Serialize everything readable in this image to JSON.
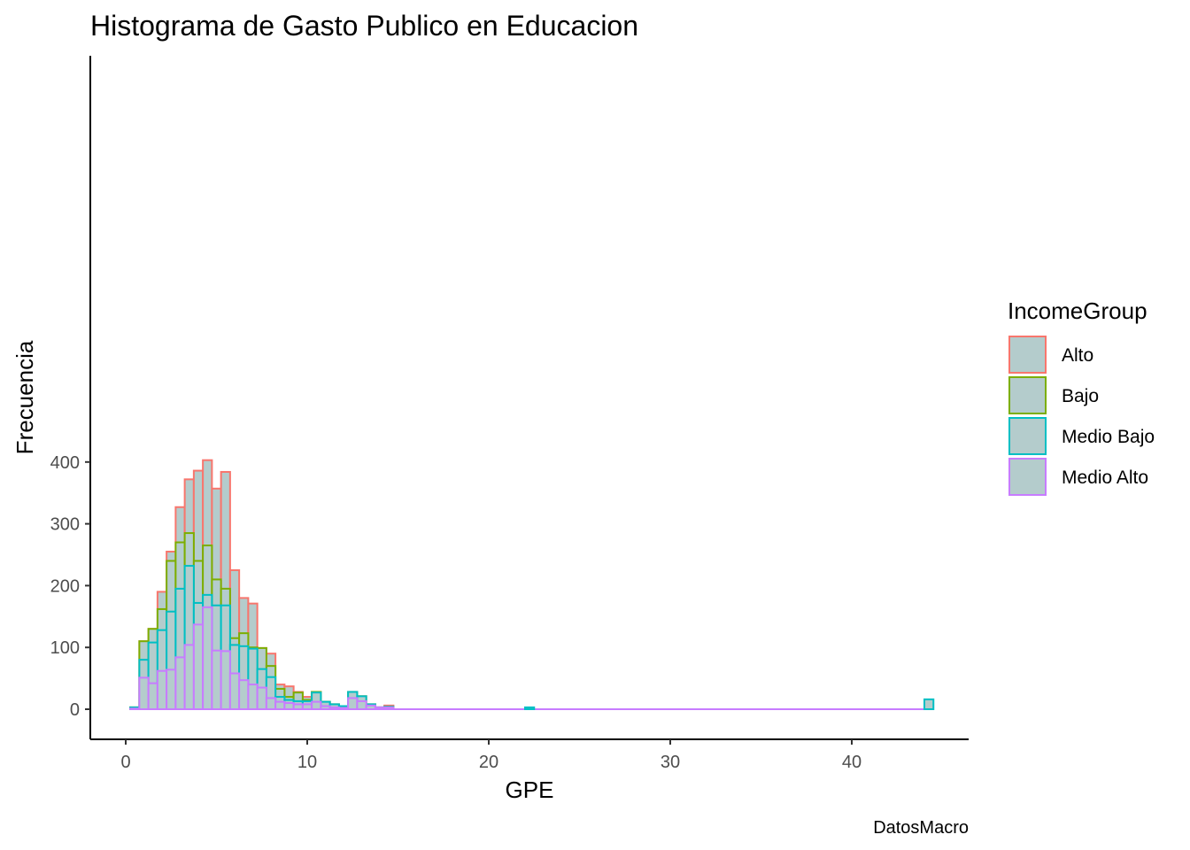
{
  "chart_data": {
    "type": "bar",
    "title": "Histograma de Gasto Publico en Educacion",
    "xlabel": "GPE",
    "ylabel": "Frecuencia",
    "caption": "DatosMacro",
    "xlim": [
      0,
      45
    ],
    "ylim": [
      0,
      420
    ],
    "x_ticks": [
      "0",
      "10",
      "20",
      "30",
      "40"
    ],
    "y_ticks": [
      "0",
      "100",
      "200",
      "300",
      "400"
    ],
    "grid": false,
    "stacked": true,
    "fill_color": "#b4cccc",
    "bin_width": 0.5,
    "bin_start": 0.25,
    "legend": {
      "title": "IncomeGroup",
      "position": "right",
      "entries": [
        {
          "label": "Alto",
          "color": "#f8766d"
        },
        {
          "label": "Bajo",
          "color": "#7cae00"
        },
        {
          "label": "Medio Bajo",
          "color": "#00bfc4"
        },
        {
          "label": "Medio Alto",
          "color": "#c77cff"
        }
      ]
    },
    "cumulative_tops": {
      "Alto": [
        3,
        110,
        130,
        190,
        255,
        327,
        372,
        386,
        403,
        357,
        384,
        225,
        180,
        171,
        99,
        90,
        40,
        37,
        28,
        20,
        28,
        12,
        8,
        5,
        28,
        21,
        8,
        3,
        6
      ],
      "Bajo": [
        3,
        110,
        130,
        162,
        240,
        270,
        285,
        240,
        265,
        210,
        195,
        115,
        123,
        100,
        99,
        70,
        33,
        20,
        27,
        15,
        28,
        12,
        8,
        5,
        28,
        21,
        8,
        3,
        4
      ],
      "Medio Bajo": [
        3,
        80,
        108,
        128,
        158,
        195,
        232,
        172,
        185,
        168,
        168,
        104,
        102,
        98,
        65,
        52,
        20,
        15,
        13,
        13,
        27,
        12,
        8,
        5,
        28,
        21,
        8,
        3,
        4
      ],
      "Medio Alto": [
        1,
        51,
        42,
        62,
        64,
        84,
        104,
        137,
        165,
        95,
        94,
        58,
        47,
        40,
        35,
        18,
        12,
        10,
        8,
        8,
        12,
        5,
        3,
        2,
        18,
        13,
        6,
        3,
        3
      ]
    },
    "outliers": [
      {
        "x": 22.0,
        "group": "Medio Bajo",
        "value": 3
      },
      {
        "x": 44.0,
        "group": "Medio Bajo",
        "value": 16
      }
    ]
  }
}
